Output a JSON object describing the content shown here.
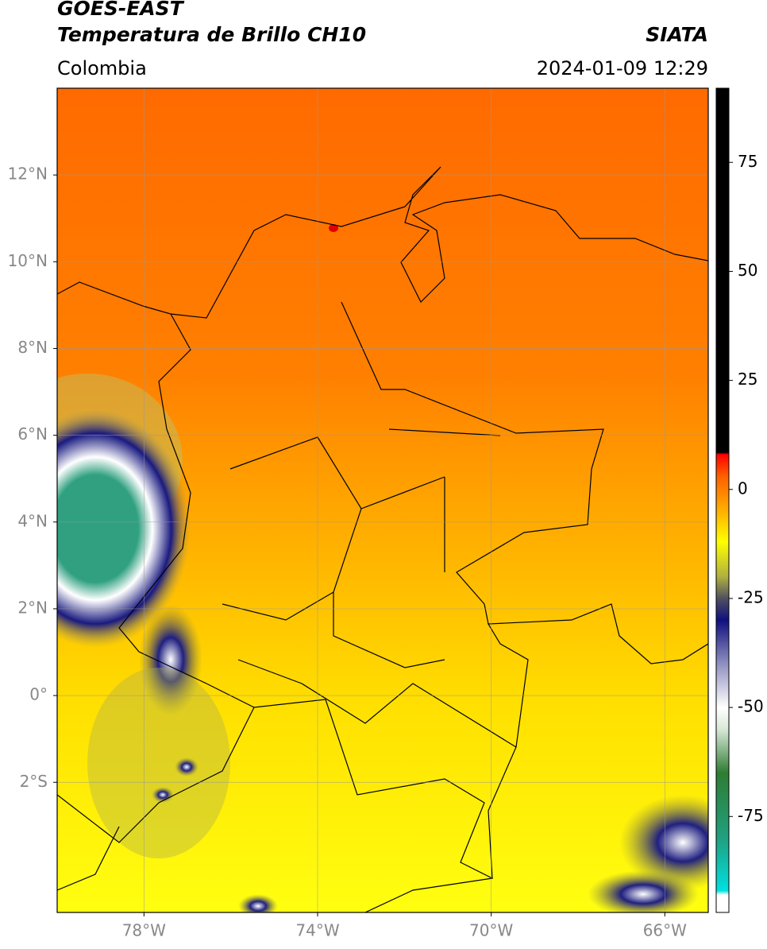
{
  "header": {
    "title": "GOES-EAST",
    "subtitle": "Temperatura de Brillo CH10",
    "source": "SIATA",
    "region": "Colombia",
    "datetime": "2024-01-09 12:29"
  },
  "map": {
    "xlim": [
      -80,
      -65
    ],
    "ylim": [
      -5,
      14
    ],
    "xticks": [
      {
        "value": -78,
        "label": "78°W"
      },
      {
        "value": -74,
        "label": "74°W"
      },
      {
        "value": -70,
        "label": "70°W"
      },
      {
        "value": -66,
        "label": "66°W"
      }
    ],
    "yticks": [
      {
        "value": 12,
        "label": "12°N"
      },
      {
        "value": 10,
        "label": "10°N"
      },
      {
        "value": 8,
        "label": "8°N"
      },
      {
        "value": 6,
        "label": "6°N"
      },
      {
        "value": 4,
        "label": "4°N"
      },
      {
        "value": 2,
        "label": "2°N"
      },
      {
        "value": 0,
        "label": "0°"
      },
      {
        "value": -2,
        "label": "2°S"
      }
    ],
    "grid": true
  },
  "colorbar": {
    "lim": [
      -97,
      92
    ],
    "ticks": [
      75,
      50,
      25,
      0,
      -25,
      -50,
      -75
    ],
    "stops": [
      [
        -97,
        "#ffffff"
      ],
      [
        -93,
        "#ffffff"
      ],
      [
        -92,
        "#00e0e0"
      ],
      [
        -80,
        "#20a080"
      ],
      [
        -65,
        "#2e7d32"
      ],
      [
        -55,
        "#d8e8d8"
      ],
      [
        -50,
        "#ffffff"
      ],
      [
        -40,
        "#9090c0"
      ],
      [
        -30,
        "#101080"
      ],
      [
        -25,
        "#505060"
      ],
      [
        -20,
        "#b0b040"
      ],
      [
        -12,
        "#ffff00"
      ],
      [
        -5,
        "#ffb000"
      ],
      [
        3,
        "#ff6000"
      ],
      [
        8,
        "#ff0000"
      ],
      [
        8.5,
        "#000000"
      ],
      [
        92,
        "#000000"
      ]
    ]
  }
}
